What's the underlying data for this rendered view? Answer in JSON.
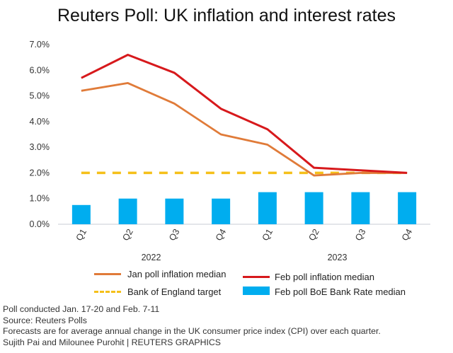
{
  "chart_data": {
    "type": "line",
    "title": "Reuters Poll: UK inflation and interest rates",
    "categories": [
      "Q1",
      "Q2",
      "Q3",
      "Q4",
      "Q1",
      "Q2",
      "Q3",
      "Q4"
    ],
    "year_labels": [
      "2022",
      "2023"
    ],
    "ylim": [
      0,
      7
    ],
    "yticks": [
      "0.0%",
      "1.0%",
      "2.0%",
      "3.0%",
      "4.0%",
      "5.0%",
      "6.0%",
      "7.0%"
    ],
    "series": [
      {
        "name": "Jan poll inflation median",
        "type": "line",
        "color": "#e07b39",
        "values": [
          5.2,
          5.5,
          4.7,
          3.5,
          3.1,
          1.9,
          2.0,
          2.0
        ]
      },
      {
        "name": "Feb poll inflation median",
        "type": "line",
        "color": "#d7191c",
        "values": [
          5.7,
          6.6,
          5.9,
          4.5,
          3.7,
          2.2,
          2.1,
          2.0
        ]
      },
      {
        "name": "Bank of England target",
        "type": "dashed-line",
        "color": "#f5c01a",
        "values": [
          2,
          2,
          2,
          2,
          2,
          2,
          2,
          2
        ]
      },
      {
        "name": "Feb poll BoE Bank Rate median",
        "type": "bar",
        "color": "#00adef",
        "values": [
          0.75,
          1.0,
          1.0,
          1.0,
          1.25,
          1.25,
          1.25,
          1.25
        ]
      }
    ],
    "legend": "bottom"
  },
  "notes": [
    "Poll conducted Jan. 17-20 and Feb. 7-11",
    "Source: Reuters Polls",
    "Forecasts are for average annual change in the UK consumer price index (CPI) over each quarter.",
    "Sujith Pai and Milounee Purohit | REUTERS GRAPHICS"
  ]
}
